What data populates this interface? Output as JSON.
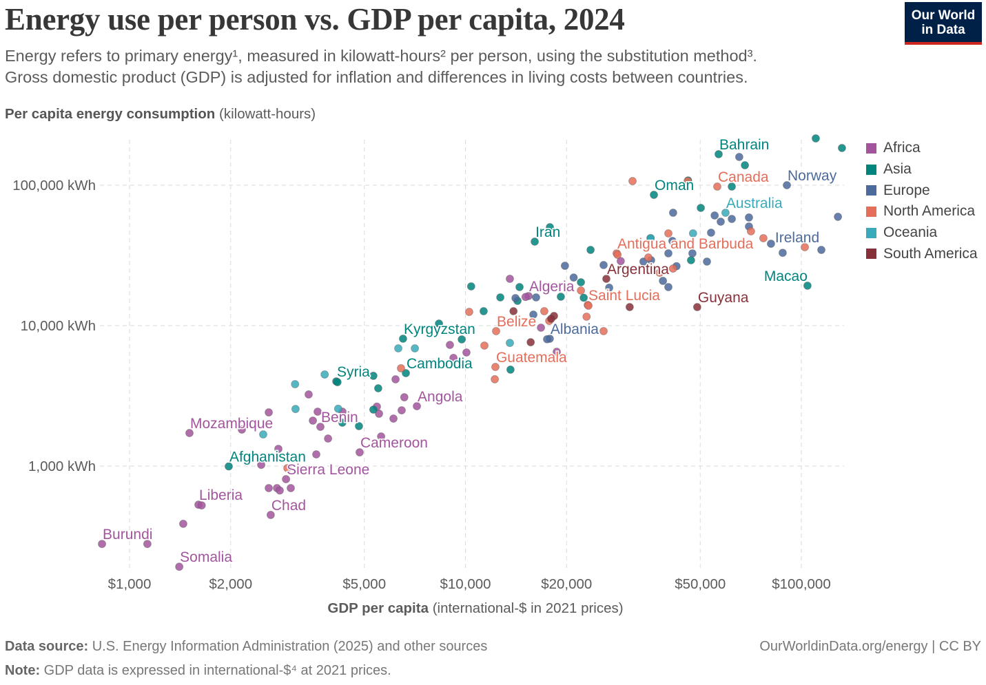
{
  "header": {
    "title": "Energy use per person vs. GDP per capita, 2024",
    "subtitle_line1": "Energy refers to primary energy¹, measured in kilowatt-hours² per person, using the substitution method³.",
    "subtitle_line2": "Gross domestic product (GDP) is adjusted for inflation and differences in living costs between countries.",
    "logo_line1": "Our World",
    "logo_line2": "in Data"
  },
  "footer": {
    "source_label": "Data source:",
    "source_text": "U.S. Energy Information Administration (2025) and other sources",
    "note_label": "Note:",
    "note_text": "GDP data is expressed in international-$⁴ at 2021 prices.",
    "url": "OurWorldinData.org/energy",
    "license": "| CC BY"
  },
  "chart_data": {
    "type": "scatter",
    "title": "Energy use per person vs. GDP per capita, 2024",
    "ylabel_bold": "Per capita energy consumption",
    "ylabel_unit": "(kilowatt-hours)",
    "xlabel_bold": "GDP per capita",
    "xlabel_unit": "(international-$ in 2021 prices)",
    "x_scale": "log",
    "y_scale": "log",
    "xlim": [
      800,
      134000
    ],
    "ylim": [
      178,
      218000
    ],
    "grid": true,
    "legend_position": "right",
    "x_ticks": [
      {
        "value": 1000,
        "label": "$1,000"
      },
      {
        "value": 2000,
        "label": "$2,000"
      },
      {
        "value": 5000,
        "label": "$5,000"
      },
      {
        "value": 10000,
        "label": "$10,000"
      },
      {
        "value": 20000,
        "label": "$20,000"
      },
      {
        "value": 50000,
        "label": "$50,000"
      },
      {
        "value": 100000,
        "label": "$100,000"
      }
    ],
    "y_ticks": [
      {
        "value": 1000,
        "label": "1,000 kWh"
      },
      {
        "value": 10000,
        "label": "10,000 kWh"
      },
      {
        "value": 100000,
        "label": "100,000 kWh"
      }
    ],
    "regions": [
      {
        "name": "Africa",
        "color": "#a2559c"
      },
      {
        "name": "Asia",
        "color": "#00847e"
      },
      {
        "name": "Europe",
        "color": "#4c6a9c"
      },
      {
        "name": "North America",
        "color": "#e56e5a"
      },
      {
        "name": "Oceania",
        "color": "#38aaba"
      },
      {
        "name": "South America",
        "color": "#883039"
      }
    ],
    "points": [
      {
        "x": 828,
        "y": 279,
        "r": "Africa",
        "label": "Burundi"
      },
      {
        "x": 1406,
        "y": 192,
        "r": "Africa",
        "label": "Somalia"
      },
      {
        "x": 1604,
        "y": 531,
        "r": "Africa",
        "label": "Liberia"
      },
      {
        "x": 2632,
        "y": 449,
        "r": "Africa",
        "label": "Chad"
      },
      {
        "x": 2923,
        "y": 807,
        "r": "Africa",
        "label": "Sierra Leone"
      },
      {
        "x": 1974,
        "y": 995,
        "r": "Asia",
        "label": "Afghanistan"
      },
      {
        "x": 1508,
        "y": 1719,
        "r": "Africa",
        "label": "Mozambique"
      },
      {
        "x": 3700,
        "y": 1903,
        "r": "Africa",
        "label": "Benin"
      },
      {
        "x": 4842,
        "y": 1253,
        "r": "Africa",
        "label": "Cameroon"
      },
      {
        "x": 7169,
        "y": 2670,
        "r": "Africa",
        "label": "Angola"
      },
      {
        "x": 4125,
        "y": 4009,
        "r": "Asia",
        "label": "Syria"
      },
      {
        "x": 6647,
        "y": 4590,
        "r": "Asia",
        "label": "Cambodia"
      },
      {
        "x": 6520,
        "y": 8070,
        "r": "Asia",
        "label": "Kyrgyzstan"
      },
      {
        "x": 12280,
        "y": 5080,
        "r": "North America",
        "label": "Guatemala"
      },
      {
        "x": 12340,
        "y": 9140,
        "r": "North America",
        "label": "Belize"
      },
      {
        "x": 17830,
        "y": 8070,
        "r": "Europe",
        "label": "Albania"
      },
      {
        "x": 15410,
        "y": 16250,
        "r": "Africa",
        "label": "Algeria"
      },
      {
        "x": 23130,
        "y": 14030,
        "r": "North America",
        "label": "Saint Lucia"
      },
      {
        "x": 26270,
        "y": 21550,
        "r": "South America",
        "label": "Argentina"
      },
      {
        "x": 48980,
        "y": 13560,
        "r": "South America",
        "label": "Guyana"
      },
      {
        "x": 16080,
        "y": 39630,
        "r": "Asia",
        "label": "Iran"
      },
      {
        "x": 28200,
        "y": 32720,
        "r": "North America",
        "label": "Antigua and Barbuda"
      },
      {
        "x": 36400,
        "y": 85340,
        "r": "Asia",
        "label": "Oman"
      },
      {
        "x": 56730,
        "y": 166300,
        "r": "Asia",
        "label": "Bahrain"
      },
      {
        "x": 56200,
        "y": 97730,
        "r": "North America",
        "label": "Canada"
      },
      {
        "x": 90570,
        "y": 100000,
        "r": "Europe",
        "label": "Norway"
      },
      {
        "x": 59460,
        "y": 63650,
        "r": "Oceania",
        "label": "Australia"
      },
      {
        "x": 81210,
        "y": 38300,
        "r": "Europe",
        "label": "Ireland"
      },
      {
        "x": 104300,
        "y": 19250,
        "r": "Asia",
        "label": "Macao"
      },
      {
        "x": 1130,
        "y": 279,
        "r": "Africa"
      },
      {
        "x": 1445,
        "y": 388,
        "r": "Africa"
      },
      {
        "x": 1640,
        "y": 525,
        "r": "Africa"
      },
      {
        "x": 2160,
        "y": 1820,
        "r": "Africa"
      },
      {
        "x": 2466,
        "y": 1020,
        "r": "Africa"
      },
      {
        "x": 2774,
        "y": 1325,
        "r": "Africa"
      },
      {
        "x": 2597,
        "y": 697,
        "r": "Africa"
      },
      {
        "x": 2748,
        "y": 697,
        "r": "Africa"
      },
      {
        "x": 3020,
        "y": 697,
        "r": "Africa"
      },
      {
        "x": 2800,
        "y": 670,
        "r": "Africa"
      },
      {
        "x": 3597,
        "y": 1212,
        "r": "Africa"
      },
      {
        "x": 3899,
        "y": 1571,
        "r": "Africa"
      },
      {
        "x": 3514,
        "y": 2107,
        "r": "Africa"
      },
      {
        "x": 3631,
        "y": 2439,
        "r": "Africa"
      },
      {
        "x": 3414,
        "y": 3236,
        "r": "Africa"
      },
      {
        "x": 2597,
        "y": 2411,
        "r": "Africa"
      },
      {
        "x": 4303,
        "y": 2439,
        "r": "Africa"
      },
      {
        "x": 5530,
        "y": 2360,
        "r": "Africa"
      },
      {
        "x": 6106,
        "y": 2178,
        "r": "Africa"
      },
      {
        "x": 6459,
        "y": 2495,
        "r": "Africa"
      },
      {
        "x": 6577,
        "y": 3090,
        "r": "Africa"
      },
      {
        "x": 6194,
        "y": 4146,
        "r": "Africa"
      },
      {
        "x": 5610,
        "y": 1625,
        "r": "Africa"
      },
      {
        "x": 5450,
        "y": 2650,
        "r": "Africa"
      },
      {
        "x": 8990,
        "y": 7290,
        "r": "Africa"
      },
      {
        "x": 9210,
        "y": 5890,
        "r": "Africa"
      },
      {
        "x": 10070,
        "y": 6440,
        "r": "Africa"
      },
      {
        "x": 13560,
        "y": 21550,
        "r": "Africa"
      },
      {
        "x": 16780,
        "y": 9670,
        "r": "Africa"
      },
      {
        "x": 18700,
        "y": 6510,
        "r": "Africa"
      },
      {
        "x": 15100,
        "y": 16000,
        "r": "Africa"
      },
      {
        "x": 29000,
        "y": 28800,
        "r": "Africa"
      },
      {
        "x": 110400,
        "y": 215400,
        "r": "Asia"
      },
      {
        "x": 132100,
        "y": 184000,
        "r": "Asia"
      },
      {
        "x": 67920,
        "y": 138700,
        "r": "Asia"
      },
      {
        "x": 62080,
        "y": 97730,
        "r": "Asia"
      },
      {
        "x": 46000,
        "y": 108000,
        "r": "Asia"
      },
      {
        "x": 50200,
        "y": 68900,
        "r": "Asia"
      },
      {
        "x": 46950,
        "y": 29220,
        "r": "Asia"
      },
      {
        "x": 35560,
        "y": 41950,
        "r": "Asia"
      },
      {
        "x": 23580,
        "y": 34600,
        "r": "Asia"
      },
      {
        "x": 17840,
        "y": 50240,
        "r": "Asia"
      },
      {
        "x": 22070,
        "y": 20360,
        "r": "Asia"
      },
      {
        "x": 22500,
        "y": 15800,
        "r": "Asia"
      },
      {
        "x": 19230,
        "y": 16070,
        "r": "Asia"
      },
      {
        "x": 14490,
        "y": 18820,
        "r": "Asia"
      },
      {
        "x": 14290,
        "y": 15010,
        "r": "Asia"
      },
      {
        "x": 12700,
        "y": 15890,
        "r": "Asia"
      },
      {
        "x": 10400,
        "y": 19030,
        "r": "Asia"
      },
      {
        "x": 11330,
        "y": 12670,
        "r": "Asia"
      },
      {
        "x": 8340,
        "y": 10340,
        "r": "Asia"
      },
      {
        "x": 9750,
        "y": 7980,
        "r": "Asia"
      },
      {
        "x": 13620,
        "y": 4860,
        "r": "Asia"
      },
      {
        "x": 5320,
        "y": 4390,
        "r": "Asia"
      },
      {
        "x": 5500,
        "y": 3580,
        "r": "Asia"
      },
      {
        "x": 4160,
        "y": 3960,
        "r": "Asia"
      },
      {
        "x": 5320,
        "y": 2523,
        "r": "Asia"
      },
      {
        "x": 4820,
        "y": 1925,
        "r": "Asia"
      },
      {
        "x": 4300,
        "y": 2037,
        "r": "Asia"
      },
      {
        "x": 65330,
        "y": 158900,
        "r": "Europe"
      },
      {
        "x": 128500,
        "y": 59550,
        "r": "Europe"
      },
      {
        "x": 114700,
        "y": 34600,
        "r": "Europe"
      },
      {
        "x": 69830,
        "y": 50800,
        "r": "Europe"
      },
      {
        "x": 69830,
        "y": 58880,
        "r": "Europe"
      },
      {
        "x": 62080,
        "y": 57500,
        "r": "Europe"
      },
      {
        "x": 55200,
        "y": 60860,
        "r": "Europe"
      },
      {
        "x": 57540,
        "y": 54980,
        "r": "Europe"
      },
      {
        "x": 53850,
        "y": 45900,
        "r": "Europe"
      },
      {
        "x": 52360,
        "y": 28570,
        "r": "Europe"
      },
      {
        "x": 47400,
        "y": 32720,
        "r": "Europe"
      },
      {
        "x": 41520,
        "y": 63650,
        "r": "Europe"
      },
      {
        "x": 41330,
        "y": 40090,
        "r": "Europe"
      },
      {
        "x": 40190,
        "y": 32720,
        "r": "Europe"
      },
      {
        "x": 38720,
        "y": 20840,
        "r": "Europe"
      },
      {
        "x": 40190,
        "y": 18820,
        "r": "Europe"
      },
      {
        "x": 35700,
        "y": 29220,
        "r": "Europe"
      },
      {
        "x": 33880,
        "y": 28570,
        "r": "Europe"
      },
      {
        "x": 42500,
        "y": 26500,
        "r": "Europe"
      },
      {
        "x": 26790,
        "y": 18620,
        "r": "Europe"
      },
      {
        "x": 25780,
        "y": 27000,
        "r": "Europe"
      },
      {
        "x": 19780,
        "y": 26680,
        "r": "Europe"
      },
      {
        "x": 16230,
        "y": 15890,
        "r": "Europe"
      },
      {
        "x": 14090,
        "y": 15700,
        "r": "Europe"
      },
      {
        "x": 15930,
        "y": 11980,
        "r": "Europe"
      },
      {
        "x": 17500,
        "y": 8000,
        "r": "Europe"
      },
      {
        "x": 88000,
        "y": 33000,
        "r": "Europe"
      },
      {
        "x": 21000,
        "y": 22000,
        "r": "Europe"
      },
      {
        "x": 31440,
        "y": 107000,
        "r": "North America"
      },
      {
        "x": 45890,
        "y": 107000,
        "r": "North America"
      },
      {
        "x": 70800,
        "y": 46950,
        "r": "North America"
      },
      {
        "x": 77090,
        "y": 41950,
        "r": "North America"
      },
      {
        "x": 102400,
        "y": 36220,
        "r": "North America"
      },
      {
        "x": 40190,
        "y": 45380,
        "r": "North America"
      },
      {
        "x": 35040,
        "y": 30570,
        "r": "North America"
      },
      {
        "x": 37860,
        "y": 23830,
        "r": "North America"
      },
      {
        "x": 28360,
        "y": 31970,
        "r": "North America"
      },
      {
        "x": 22070,
        "y": 17780,
        "r": "North America"
      },
      {
        "x": 23240,
        "y": 13870,
        "r": "North America"
      },
      {
        "x": 22940,
        "y": 11580,
        "r": "North America"
      },
      {
        "x": 25780,
        "y": 9140,
        "r": "North America"
      },
      {
        "x": 17170,
        "y": 12670,
        "r": "North America"
      },
      {
        "x": 17760,
        "y": 10810,
        "r": "North America"
      },
      {
        "x": 10260,
        "y": 12530,
        "r": "North America"
      },
      {
        "x": 11390,
        "y": 7210,
        "r": "North America"
      },
      {
        "x": 12230,
        "y": 4150,
        "r": "North America"
      },
      {
        "x": 6430,
        "y": 4970,
        "r": "North America"
      },
      {
        "x": 2951,
        "y": 966,
        "r": "North America"
      },
      {
        "x": 41500,
        "y": 25500,
        "r": "North America"
      },
      {
        "x": 47600,
        "y": 45380,
        "r": "Oceania"
      },
      {
        "x": 35600,
        "y": 41950,
        "r": "Oceania"
      },
      {
        "x": 13560,
        "y": 7530,
        "r": "Oceania"
      },
      {
        "x": 6310,
        "y": 6890,
        "r": "Oceania"
      },
      {
        "x": 7070,
        "y": 6890,
        "r": "Oceania"
      },
      {
        "x": 3810,
        "y": 4490,
        "r": "Oceania"
      },
      {
        "x": 3110,
        "y": 3830,
        "r": "Oceania"
      },
      {
        "x": 3120,
        "y": 2550,
        "r": "Oceania"
      },
      {
        "x": 4180,
        "y": 2560,
        "r": "Oceania"
      },
      {
        "x": 2500,
        "y": 1680,
        "r": "Oceania"
      },
      {
        "x": 30830,
        "y": 13560,
        "r": "South America"
      },
      {
        "x": 18350,
        "y": 11720,
        "r": "South America"
      },
      {
        "x": 15640,
        "y": 7620,
        "r": "South America"
      },
      {
        "x": 13900,
        "y": 12670,
        "r": "South America"
      },
      {
        "x": 18000,
        "y": 11200,
        "r": "South America"
      }
    ]
  }
}
